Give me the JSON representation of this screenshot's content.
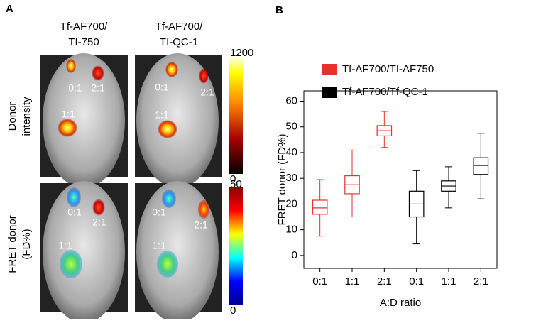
{
  "panel_labels": [
    "A",
    "B"
  ],
  "panel_a": {
    "column_titles": [
      [
        "Tf-AF700/",
        "Tf-750"
      ],
      [
        "Tf-AF700/",
        "Tf-QC-1"
      ]
    ],
    "row_titles": [
      [
        "Donor",
        "intensity"
      ],
      [
        "FRET donor",
        "(FD%)"
      ]
    ],
    "colorbars": [
      {
        "max": "1200",
        "min": "0"
      },
      {
        "max": "50",
        "min": "0"
      }
    ],
    "annotations": [
      [
        "0:1",
        "2:1",
        "1:1"
      ],
      [
        "0:1",
        "2:1",
        "1:1"
      ],
      [
        "0:1",
        "2:1",
        "1:1"
      ],
      [
        "0:1",
        "2:1",
        "1:1"
      ]
    ]
  },
  "chart_data": {
    "type": "box",
    "ylabel": "FRET donor (FD%)",
    "xlabel": "A:D ratio",
    "categories": [
      "0:1",
      "1:1",
      "2:1",
      "0:1",
      "1:1",
      "2:1"
    ],
    "ylim": [
      -5,
      64
    ],
    "yticks": [
      0,
      10,
      20,
      30,
      40,
      50,
      60
    ],
    "series": [
      {
        "name": "Tf-AF700/Tf-AF750",
        "color": "#e8312b",
        "values": [
          {
            "min": 7.5,
            "q1": 16,
            "median": 18.5,
            "q3": 21.5,
            "max": 29.5
          },
          {
            "min": 15,
            "q1": 24,
            "median": 27.5,
            "q3": 31,
            "max": 41
          },
          {
            "min": 42,
            "q1": 46.5,
            "median": 48.5,
            "q3": 50.5,
            "max": 56
          },
          null,
          null,
          null
        ]
      },
      {
        "name": "Tf-AF700/Tf-QC-1",
        "color": "#000000",
        "values": [
          null,
          null,
          null,
          {
            "min": 4.5,
            "q1": 15,
            "median": 20,
            "q3": 25,
            "max": 33
          },
          {
            "min": 18.5,
            "q1": 25,
            "median": 27,
            "q3": 29,
            "max": 34.5
          },
          {
            "min": 22,
            "q1": 31.5,
            "median": 35,
            "q3": 38,
            "max": 47.5
          }
        ]
      }
    ]
  }
}
